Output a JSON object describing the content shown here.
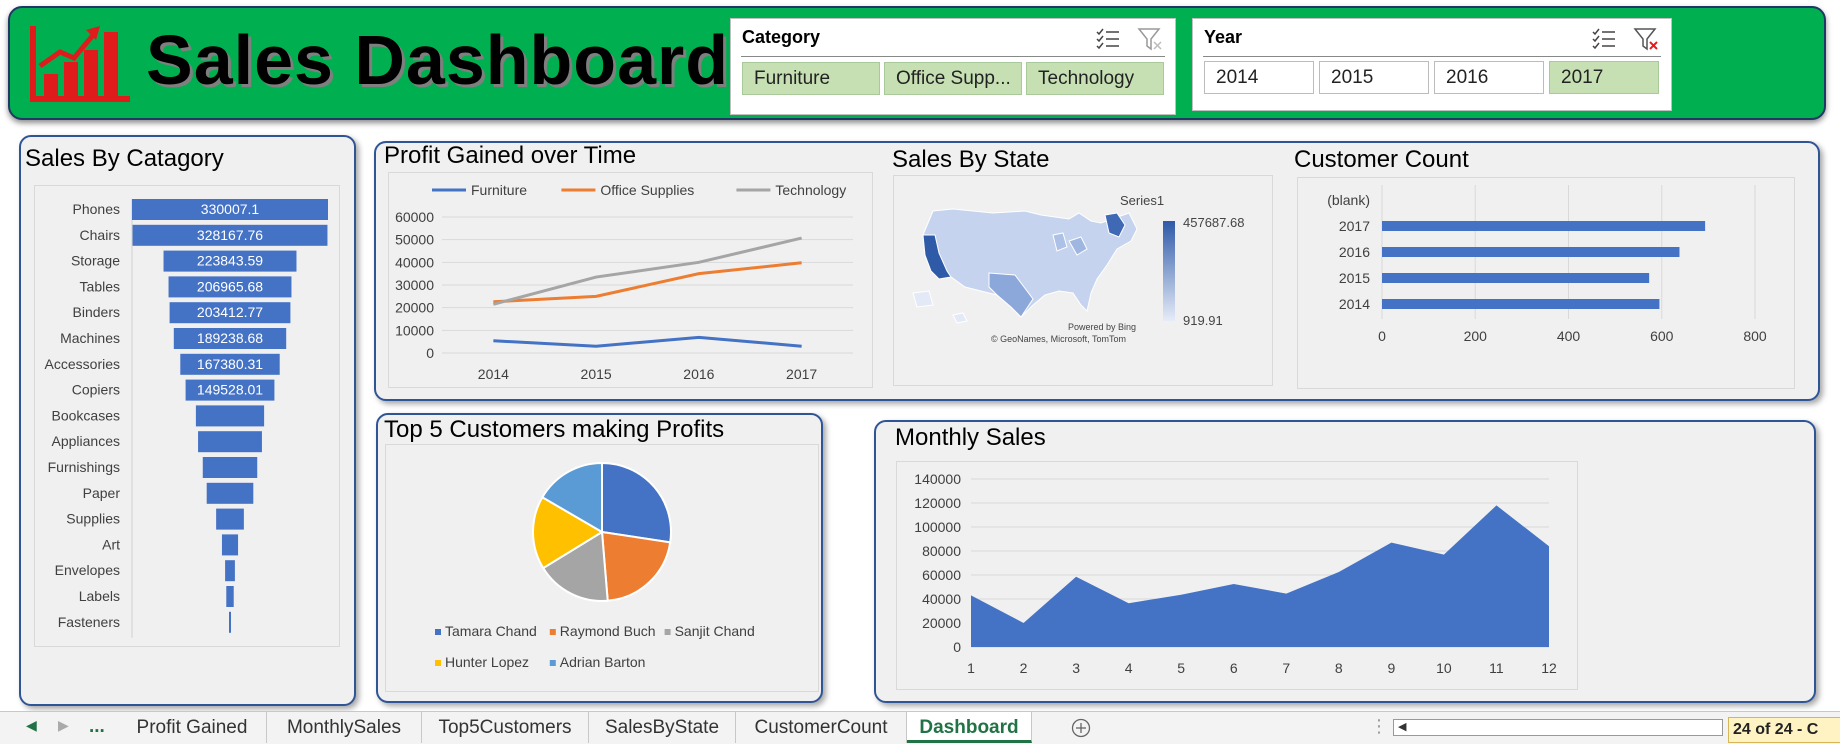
{
  "header": {
    "title": "Sales Dashboard",
    "colors": {
      "background": "#00b050",
      "logo": "#e01b1b"
    }
  },
  "slicers": {
    "category": {
      "title": "Category",
      "items": [
        {
          "label": "Furniture",
          "selected": true
        },
        {
          "label": "Office Supp...",
          "selected": true
        },
        {
          "label": "Technology",
          "selected": true
        }
      ]
    },
    "year": {
      "title": "Year",
      "items": [
        {
          "label": "2014",
          "selected": false
        },
        {
          "label": "2015",
          "selected": false
        },
        {
          "label": "2016",
          "selected": false
        },
        {
          "label": "2017",
          "selected": true
        }
      ]
    }
  },
  "panels": {
    "sales_by_category": "Sales By Catagory",
    "profit_over_time": "Profit Gained over Time",
    "sales_by_state": "Sales By State",
    "customer_count": "Customer Count",
    "top5_customers": "Top 5 Customers making Profits",
    "monthly_sales": "Monthly Sales"
  },
  "map": {
    "legend_title": "Series1",
    "max_label": "457687.68",
    "min_label": "919.91",
    "credit1": "Powered by Bing",
    "credit2": "© GeoNames, Microsoft, TomTom"
  },
  "chart_data": [
    {
      "id": "sales_by_category",
      "type": "bar",
      "subtype": "funnel",
      "title": "Sales By Catagory",
      "categories": [
        "Phones",
        "Chairs",
        "Storage",
        "Tables",
        "Binders",
        "Machines",
        "Accessories",
        "Copiers",
        "Bookcases",
        "Appliances",
        "Furnishings",
        "Paper",
        "Supplies",
        "Art",
        "Envelopes",
        "Labels",
        "Fasteners"
      ],
      "values": [
        330007.1,
        328167.76,
        223843.59,
        206965.68,
        203412.77,
        189238.68,
        167380.31,
        149528.01,
        114880,
        107532,
        91705,
        78479,
        46674,
        27119,
        16476,
        12486,
        3024
      ],
      "value_labels": [
        "330007.1",
        "328167.76",
        "223843.59",
        "206965.68",
        "203412.77",
        "189238.68",
        "167380.31",
        "149528.01",
        "",
        "",
        "",
        "",
        "",
        "",
        "",
        "",
        ""
      ],
      "color": "#4472c4"
    },
    {
      "id": "profit_over_time",
      "type": "line",
      "title": "Profit Gained over Time",
      "x": [
        "2014",
        "2015",
        "2016",
        "2017"
      ],
      "series": [
        {
          "name": "Furniture",
          "values": [
            5400,
            3000,
            6900,
            3000
          ],
          "color": "#4472c4"
        },
        {
          "name": "Office Supplies",
          "values": [
            22600,
            25000,
            35000,
            39800
          ],
          "color": "#ed7d31"
        },
        {
          "name": "Technology",
          "values": [
            21500,
            33500,
            40000,
            50700
          ],
          "color": "#a5a5a5"
        }
      ],
      "ylim": [
        0,
        60000
      ],
      "yticks": [
        "60000",
        "50000",
        "40000",
        "30000",
        "20000",
        "10000",
        "0"
      ],
      "legend": "top"
    },
    {
      "id": "customer_count",
      "type": "bar",
      "orientation": "horizontal",
      "title": "Customer Count",
      "categories": [
        "(blank)",
        "2017",
        "2016",
        "2015",
        "2014"
      ],
      "values": [
        0,
        693,
        638,
        573,
        595
      ],
      "xlim": [
        0,
        800
      ],
      "xticks": [
        "0",
        "200",
        "400",
        "600",
        "800"
      ],
      "color": "#4472c4"
    },
    {
      "id": "top5_customers",
      "type": "pie",
      "title": "Top 5 Customers making Profits",
      "categories": [
        "Tamara Chand",
        "Raymond Buch",
        "Sanjit Chand",
        "Hunter Lopez",
        "Adrian Barton"
      ],
      "values": [
        8981,
        6976,
        5757,
        5622,
        5444
      ],
      "colors": [
        "#4472c4",
        "#ed7d31",
        "#a5a5a5",
        "#ffc000",
        "#5b9bd5"
      ],
      "legend": "bottom"
    },
    {
      "id": "monthly_sales",
      "type": "area",
      "title": "Monthly Sales",
      "x": [
        "1",
        "2",
        "3",
        "4",
        "5",
        "6",
        "7",
        "8",
        "9",
        "10",
        "11",
        "12"
      ],
      "values": [
        43000,
        20000,
        58500,
        36500,
        43500,
        52500,
        44500,
        62500,
        87000,
        77000,
        118000,
        84000
      ],
      "ylim": [
        0,
        140000
      ],
      "yticks": [
        "140000",
        "120000",
        "100000",
        "80000",
        "60000",
        "40000",
        "20000",
        "0"
      ],
      "color": "#4472c4"
    }
  ],
  "sheet_tabs": {
    "more": "...",
    "items": [
      "Profit Gained",
      "MonthlySales",
      "Top5Customers",
      "SalesByState",
      "CustomerCount",
      "Dashboard"
    ],
    "active": "Dashboard",
    "status": "24 of 24 - C"
  }
}
